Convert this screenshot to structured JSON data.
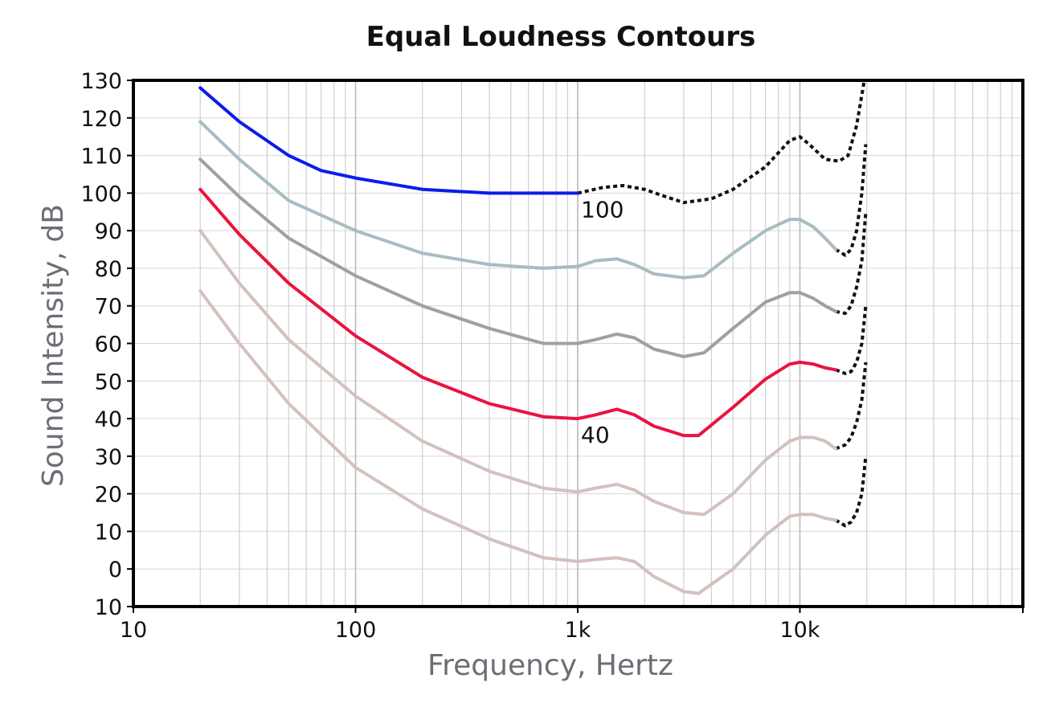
{
  "chart_data": {
    "type": "line",
    "title": "Equal Loudness Contours",
    "xlabel": "Frequency, Hertz",
    "ylabel": "Sound Intensity, dB",
    "x_scale": "log",
    "xlim": [
      10,
      100000
    ],
    "ylim": [
      -10,
      130
    ],
    "grid": true,
    "x_ticks": [
      {
        "value": 10,
        "label": "10"
      },
      {
        "value": 100,
        "label": "100"
      },
      {
        "value": 1000,
        "label": "1k"
      },
      {
        "value": 10000,
        "label": "10k"
      }
    ],
    "y_ticks": [
      {
        "value": 130,
        "label": "130"
      },
      {
        "value": 120,
        "label": "120"
      },
      {
        "value": 110,
        "label": "110"
      },
      {
        "value": 100,
        "label": "100"
      },
      {
        "value": 90,
        "label": "90"
      },
      {
        "value": 80,
        "label": "80"
      },
      {
        "value": 70,
        "label": "70"
      },
      {
        "value": 60,
        "label": "60"
      },
      {
        "value": 50,
        "label": "50"
      },
      {
        "value": 40,
        "label": "40"
      },
      {
        "value": 30,
        "label": "30"
      },
      {
        "value": 20,
        "label": "20"
      },
      {
        "value": 10,
        "label": "10"
      },
      {
        "value": 0,
        "label": "0"
      },
      {
        "value": -10,
        "label": "10"
      }
    ],
    "series": [
      {
        "color": "#0a1de8",
        "solid": [
          [
            20,
            128
          ],
          [
            30,
            119
          ],
          [
            50,
            110
          ],
          [
            70,
            106
          ],
          [
            100,
            104
          ],
          [
            200,
            101
          ],
          [
            400,
            100
          ],
          [
            700,
            100
          ],
          [
            1000,
            100
          ]
        ],
        "dashed": [
          [
            1000,
            100
          ],
          [
            1300,
            101.5
          ],
          [
            1600,
            102
          ],
          [
            2000,
            101
          ],
          [
            2500,
            99
          ],
          [
            3000,
            97.5
          ],
          [
            4000,
            98.5
          ],
          [
            5000,
            101
          ],
          [
            7000,
            107
          ],
          [
            9000,
            114
          ],
          [
            10000,
            115
          ],
          [
            11000,
            113
          ],
          [
            13000,
            109
          ],
          [
            15000,
            108.5
          ],
          [
            16500,
            110
          ],
          [
            18000,
            118
          ],
          [
            19500,
            130
          ]
        ]
      },
      {
        "color": "#a8bcc2",
        "solid": [
          [
            20,
            119
          ],
          [
            30,
            109
          ],
          [
            50,
            98
          ],
          [
            100,
            90
          ],
          [
            200,
            84
          ],
          [
            400,
            81
          ],
          [
            700,
            80
          ],
          [
            1000,
            80.5
          ],
          [
            1200,
            82
          ],
          [
            1500,
            82.5
          ],
          [
            1800,
            81
          ],
          [
            2200,
            78.5
          ],
          [
            3000,
            77.5
          ],
          [
            3700,
            78
          ],
          [
            5000,
            84
          ],
          [
            7000,
            90
          ],
          [
            9000,
            93
          ],
          [
            10000,
            93
          ],
          [
            11500,
            91
          ],
          [
            13000,
            88
          ],
          [
            14500,
            85
          ]
        ],
        "dashed": [
          [
            14500,
            85
          ],
          [
            16000,
            83.5
          ],
          [
            17000,
            85
          ],
          [
            18000,
            90
          ],
          [
            19000,
            100
          ],
          [
            19800,
            113
          ]
        ]
      },
      {
        "color": "#9aa49b",
        "solid": [
          [
            20,
            109
          ],
          [
            30,
            99
          ],
          [
            50,
            88
          ],
          [
            100,
            78
          ],
          [
            200,
            70
          ],
          [
            400,
            64
          ],
          [
            700,
            60
          ],
          [
            1000,
            60
          ],
          [
            1200,
            61
          ],
          [
            1500,
            62.5
          ],
          [
            1800,
            61.5
          ],
          [
            2200,
            58.5
          ],
          [
            3000,
            56.5
          ],
          [
            3700,
            57.5
          ],
          [
            5000,
            64
          ],
          [
            7000,
            71
          ],
          [
            9000,
            73.5
          ],
          [
            10000,
            73.5
          ],
          [
            11500,
            72
          ],
          [
            13000,
            70
          ],
          [
            14500,
            68.5
          ]
        ],
        "dashed": [
          [
            14500,
            68.5
          ],
          [
            16000,
            68
          ],
          [
            17000,
            70
          ],
          [
            18000,
            75
          ],
          [
            19000,
            82
          ],
          [
            19800,
            95
          ]
        ]
      },
      {
        "color": "#ea1340",
        "solid": [
          [
            20,
            101
          ],
          [
            30,
            89
          ],
          [
            50,
            76
          ],
          [
            100,
            62
          ],
          [
            200,
            51
          ],
          [
            400,
            44
          ],
          [
            700,
            40.5
          ],
          [
            1000,
            40
          ],
          [
            1200,
            41
          ],
          [
            1500,
            42.5
          ],
          [
            1800,
            41
          ],
          [
            2200,
            38
          ],
          [
            3000,
            35.5
          ],
          [
            3500,
            35.5
          ],
          [
            5000,
            43
          ],
          [
            7000,
            50.5
          ],
          [
            9000,
            54.5
          ],
          [
            10000,
            55
          ],
          [
            11500,
            54.5
          ],
          [
            13000,
            53.5
          ],
          [
            14500,
            53
          ]
        ],
        "dashed": [
          [
            14500,
            53
          ],
          [
            16000,
            52
          ],
          [
            17000,
            52.5
          ],
          [
            18000,
            55
          ],
          [
            19000,
            60
          ],
          [
            19800,
            70
          ]
        ]
      },
      {
        "color": "#d3c1bd",
        "solid": [
          [
            20,
            90
          ],
          [
            30,
            76
          ],
          [
            50,
            61
          ],
          [
            100,
            46
          ],
          [
            200,
            34
          ],
          [
            400,
            26
          ],
          [
            700,
            21.5
          ],
          [
            1000,
            20.5
          ],
          [
            1200,
            21.5
          ],
          [
            1500,
            22.5
          ],
          [
            1800,
            21
          ],
          [
            2200,
            18
          ],
          [
            3000,
            15
          ],
          [
            3700,
            14.5
          ],
          [
            5000,
            20
          ],
          [
            7000,
            29
          ],
          [
            9000,
            34
          ],
          [
            10000,
            35
          ],
          [
            11500,
            35
          ],
          [
            13000,
            34
          ],
          [
            14500,
            32
          ]
        ],
        "dashed": [
          [
            14500,
            32
          ],
          [
            16000,
            33
          ],
          [
            17000,
            35
          ],
          [
            18000,
            39
          ],
          [
            19000,
            45
          ],
          [
            19800,
            55
          ]
        ]
      },
      {
        "color": "#d3c1bd",
        "solid": [
          [
            20,
            74
          ],
          [
            30,
            60
          ],
          [
            50,
            44
          ],
          [
            100,
            27
          ],
          [
            200,
            16
          ],
          [
            400,
            8
          ],
          [
            700,
            3
          ],
          [
            1000,
            2
          ],
          [
            1200,
            2.5
          ],
          [
            1500,
            3
          ],
          [
            1800,
            2
          ],
          [
            2200,
            -2
          ],
          [
            3000,
            -6
          ],
          [
            3500,
            -6.5
          ],
          [
            5000,
            0
          ],
          [
            7000,
            9
          ],
          [
            9000,
            14
          ],
          [
            10000,
            14.5
          ],
          [
            11500,
            14.5
          ],
          [
            13000,
            13.5
          ],
          [
            14500,
            13
          ]
        ],
        "dashed": [
          [
            14500,
            13
          ],
          [
            16000,
            11.5
          ],
          [
            17000,
            12.5
          ],
          [
            18000,
            15
          ],
          [
            19000,
            20
          ],
          [
            19800,
            30
          ]
        ]
      }
    ],
    "annotations": [
      {
        "text": "100",
        "x": 1000,
        "y": 100
      },
      {
        "text": "40",
        "x": 1000,
        "y": 40
      }
    ]
  }
}
